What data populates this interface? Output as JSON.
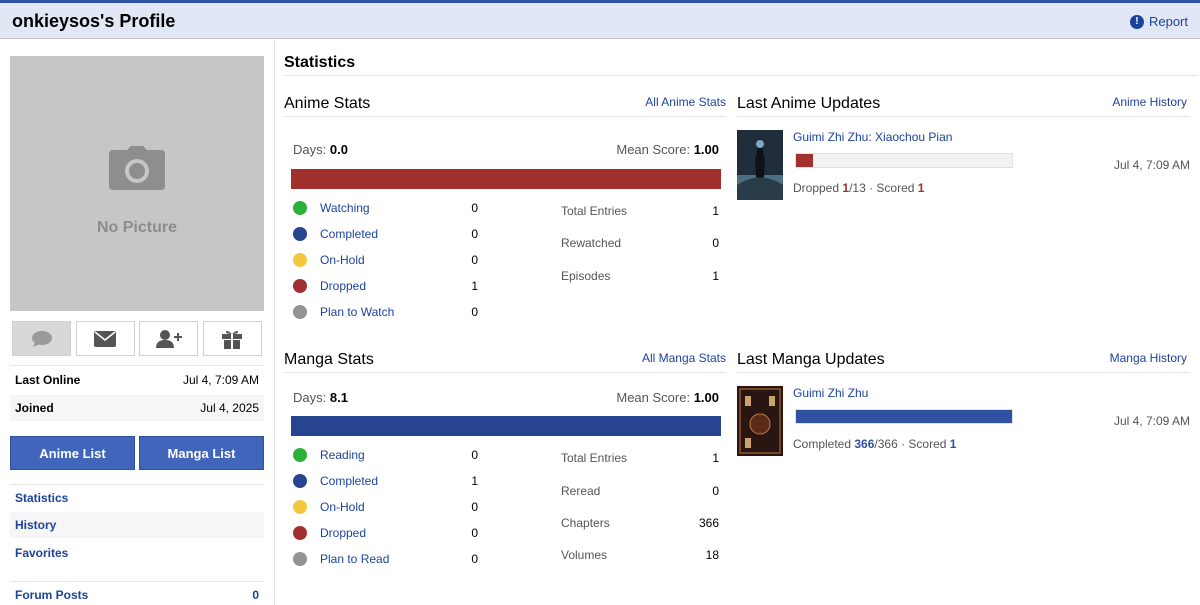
{
  "header": {
    "title": "onkieysos's Profile",
    "report": "Report"
  },
  "sidebar": {
    "no_picture": "No Picture",
    "info": [
      {
        "label": "Last Online",
        "value": "Jul 4, 7:09 AM"
      },
      {
        "label": "Joined",
        "value": "Jul 4, 2025"
      }
    ],
    "anime_list": "Anime List",
    "manga_list": "Manga List",
    "nav": [
      "Statistics",
      "History",
      "Favorites"
    ],
    "forum_posts": {
      "label": "Forum Posts",
      "value": "0"
    },
    "icons": [
      "chat-icon",
      "mail-icon",
      "add-friend-icon",
      "gift-icon"
    ]
  },
  "statistics": {
    "title": "Statistics",
    "anime": {
      "heading": "Anime Stats",
      "link": "All Anime Stats",
      "days_label": "Days:",
      "days": "0.0",
      "mean_label": "Mean Score:",
      "mean": "1.00",
      "bar_color": "#a2302f",
      "statuses": [
        {
          "name": "Watching",
          "count": "0",
          "color": "#2db039"
        },
        {
          "name": "Completed",
          "count": "0",
          "color": "#26448f"
        },
        {
          "name": "On-Hold",
          "count": "0",
          "color": "#f1c83e"
        },
        {
          "name": "Dropped",
          "count": "1",
          "color": "#a12f31"
        },
        {
          "name": "Plan to Watch",
          "count": "0",
          "color": "#939393"
        }
      ],
      "totals": [
        {
          "label": "Total Entries",
          "value": "1"
        },
        {
          "label": "Rewatched",
          "value": "0"
        },
        {
          "label": "Episodes",
          "value": "1"
        }
      ]
    },
    "manga": {
      "heading": "Manga Stats",
      "link": "All Manga Stats",
      "days_label": "Days:",
      "days": "8.1",
      "mean_label": "Mean Score:",
      "mean": "1.00",
      "bar_color": "#26448f",
      "statuses": [
        {
          "name": "Reading",
          "count": "0",
          "color": "#2db039"
        },
        {
          "name": "Completed",
          "count": "1",
          "color": "#26448f"
        },
        {
          "name": "On-Hold",
          "count": "0",
          "color": "#f1c83e"
        },
        {
          "name": "Dropped",
          "count": "0",
          "color": "#a12f31"
        },
        {
          "name": "Plan to Read",
          "count": "0",
          "color": "#939393"
        }
      ],
      "totals": [
        {
          "label": "Total Entries",
          "value": "1"
        },
        {
          "label": "Reread",
          "value": "0"
        },
        {
          "label": "Chapters",
          "value": "366"
        },
        {
          "label": "Volumes",
          "value": "18"
        }
      ]
    }
  },
  "updates": {
    "anime": {
      "heading": "Last Anime Updates",
      "link": "Anime History",
      "title": "Guimi Zhi Zhu: Xiaochou Pian",
      "date": "Jul 4, 7:09 AM",
      "status": "Dropped",
      "progress": "1",
      "total": "/13",
      "scored_label": " · Scored ",
      "score": "1",
      "progress_fraction": 0.077,
      "color": "#a2302f"
    },
    "manga": {
      "heading": "Last Manga Updates",
      "link": "Manga History",
      "title": "Guimi Zhi Zhu",
      "date": "Jul 4, 7:09 AM",
      "status": "Completed",
      "progress": "366",
      "total": "/366",
      "scored_label": " · Scored ",
      "score": "1",
      "progress_fraction": 1.0,
      "color": "#2e51a2"
    }
  }
}
